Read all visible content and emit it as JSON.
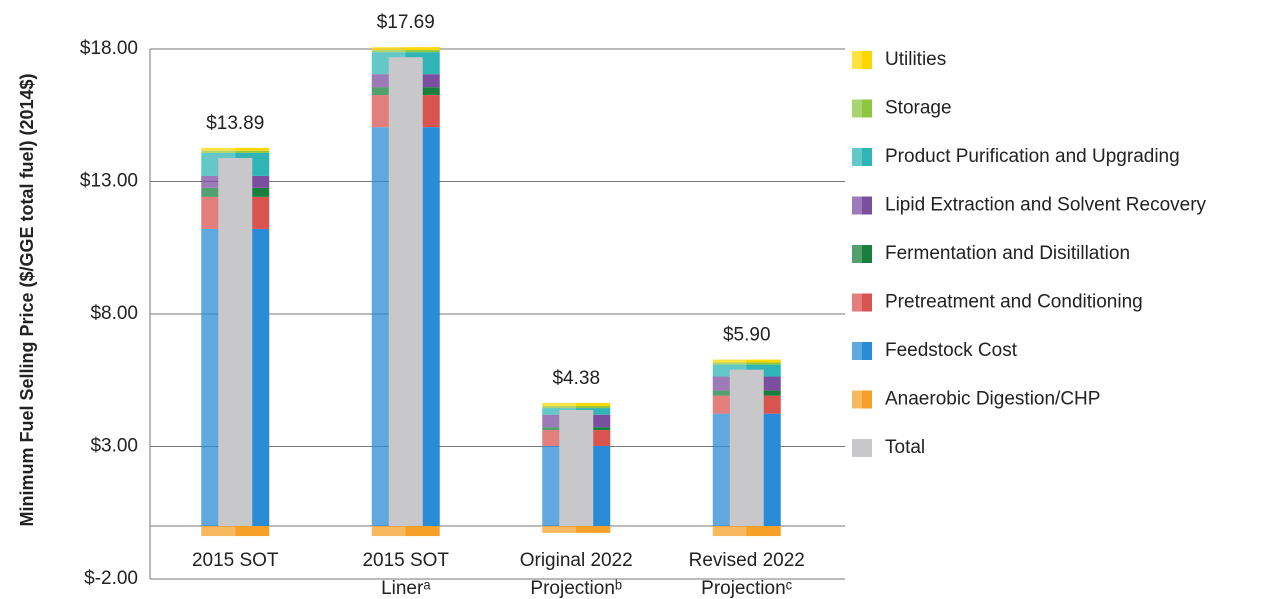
{
  "chart_data": {
    "type": "stacked-bar",
    "y_label": "Minimum Fuel Selling Price ($/GGE total fuel) (2014$)",
    "categories": [
      [
        "2015 SOT"
      ],
      [
        "2015 SOT",
        "Linerᵃ"
      ],
      [
        "Original 2022",
        "Projectionᵇ"
      ],
      [
        "Revised 2022",
        "Projectionᶜ"
      ]
    ],
    "ylim": [
      -2,
      18
    ],
    "yticks": [
      {
        "value": -2,
        "label": "$-2.00"
      },
      {
        "value": 3,
        "label": "$3.00"
      },
      {
        "value": 8,
        "label": "$8.00"
      },
      {
        "value": 13,
        "label": "$13.00"
      },
      {
        "value": 18,
        "label": "$18.00"
      }
    ],
    "grid": true,
    "legend": "right",
    "series": [
      {
        "name": "Anaerobic Digestion/CHP",
        "color": "#f6a028",
        "values": [
          -0.38,
          -0.38,
          -0.26,
          -0.38
        ]
      },
      {
        "name": "Feedstock Cost",
        "color": "#2a8bd6",
        "values": [
          11.21,
          15.05,
          3.02,
          4.24
        ]
      },
      {
        "name": "Pretreatment and Conditioning",
        "color": "#d9534f",
        "values": [
          1.21,
          1.21,
          0.6,
          0.68
        ]
      },
      {
        "name": "Fermentation and Disitillation",
        "color": "#1a7f3c",
        "values": [
          0.34,
          0.3,
          0.11,
          0.19
        ]
      },
      {
        "name": "Lipid Extraction and Solvent Recovery",
        "color": "#7b4fa0",
        "values": [
          0.45,
          0.49,
          0.47,
          0.53
        ]
      },
      {
        "name": "Product Purification and Upgrading",
        "color": "#2fb5b5",
        "values": [
          0.87,
          0.83,
          0.25,
          0.45
        ]
      },
      {
        "name": "Storage",
        "color": "#8dc63f",
        "values": [
          0.08,
          0.08,
          0.08,
          0.08
        ]
      },
      {
        "name": "Utilities",
        "color": "#ffd700",
        "values": [
          0.11,
          0.11,
          0.11,
          0.11
        ]
      }
    ],
    "total": {
      "name": "Total",
      "color": "#c8c8ca",
      "values": [
        13.89,
        17.69,
        4.38,
        5.9
      ],
      "value_labels": [
        "$13.89",
        "$17.69",
        "$4.38",
        "$5.90"
      ]
    }
  }
}
